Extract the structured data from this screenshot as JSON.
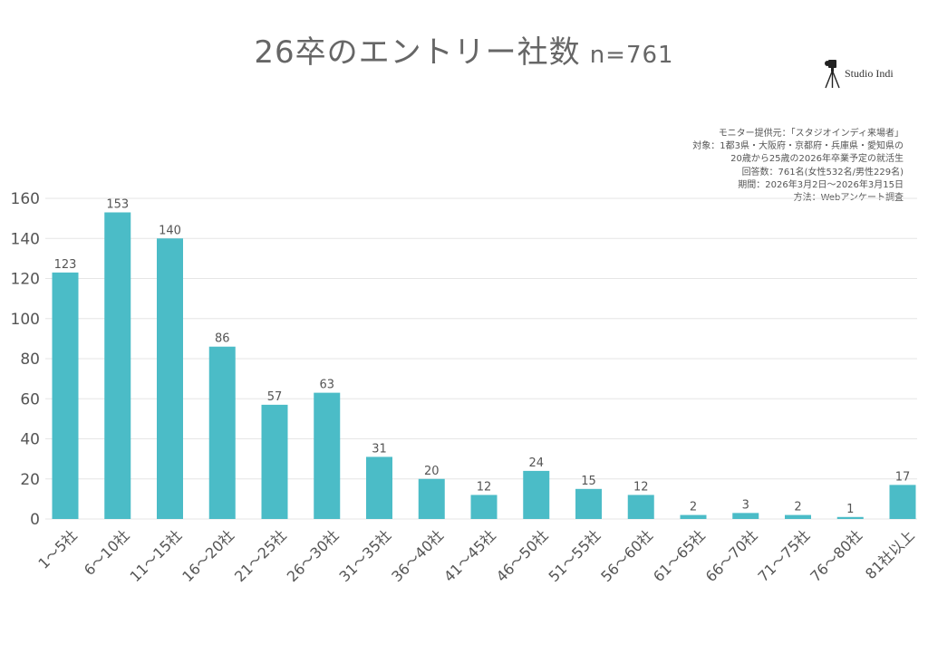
{
  "title": "26卒のエントリー社数",
  "title_n": "n=761",
  "brand": {
    "name": "Studio Indi",
    "icon": "camera-tripod-icon"
  },
  "notes": [
    "モニター提供元：「スタジオインディ来場者」",
    "対象：1都3県・大阪府・京都府・兵庫県・愛知県の",
    "20歳から25歳の2026年卒業予定の就活生",
    "回答数：761名(女性532名/男性229名)",
    "期間：2026年3月2日〜2026年3月15日",
    "方法：Webアンケート調査"
  ],
  "colors": {
    "bar": "#4bbcc7",
    "grid": "#e6e6e6",
    "text": "#555555"
  },
  "chart_data": {
    "type": "bar",
    "categories": [
      "1〜5社",
      "6〜10社",
      "11〜15社",
      "16〜20社",
      "21〜25社",
      "26〜30社",
      "31〜35社",
      "36〜40社",
      "41〜45社",
      "46〜50社",
      "51〜55社",
      "56〜60社",
      "61〜65社",
      "66〜70社",
      "71〜75社",
      "76〜80社",
      "81社以上"
    ],
    "values": [
      123,
      153,
      140,
      86,
      57,
      63,
      31,
      20,
      12,
      24,
      15,
      12,
      2,
      3,
      2,
      1,
      17
    ],
    "yticks": [
      0,
      20,
      40,
      60,
      80,
      100,
      120,
      140,
      160
    ],
    "ylim": [
      0,
      160
    ],
    "grid": true,
    "data_labels": true
  }
}
